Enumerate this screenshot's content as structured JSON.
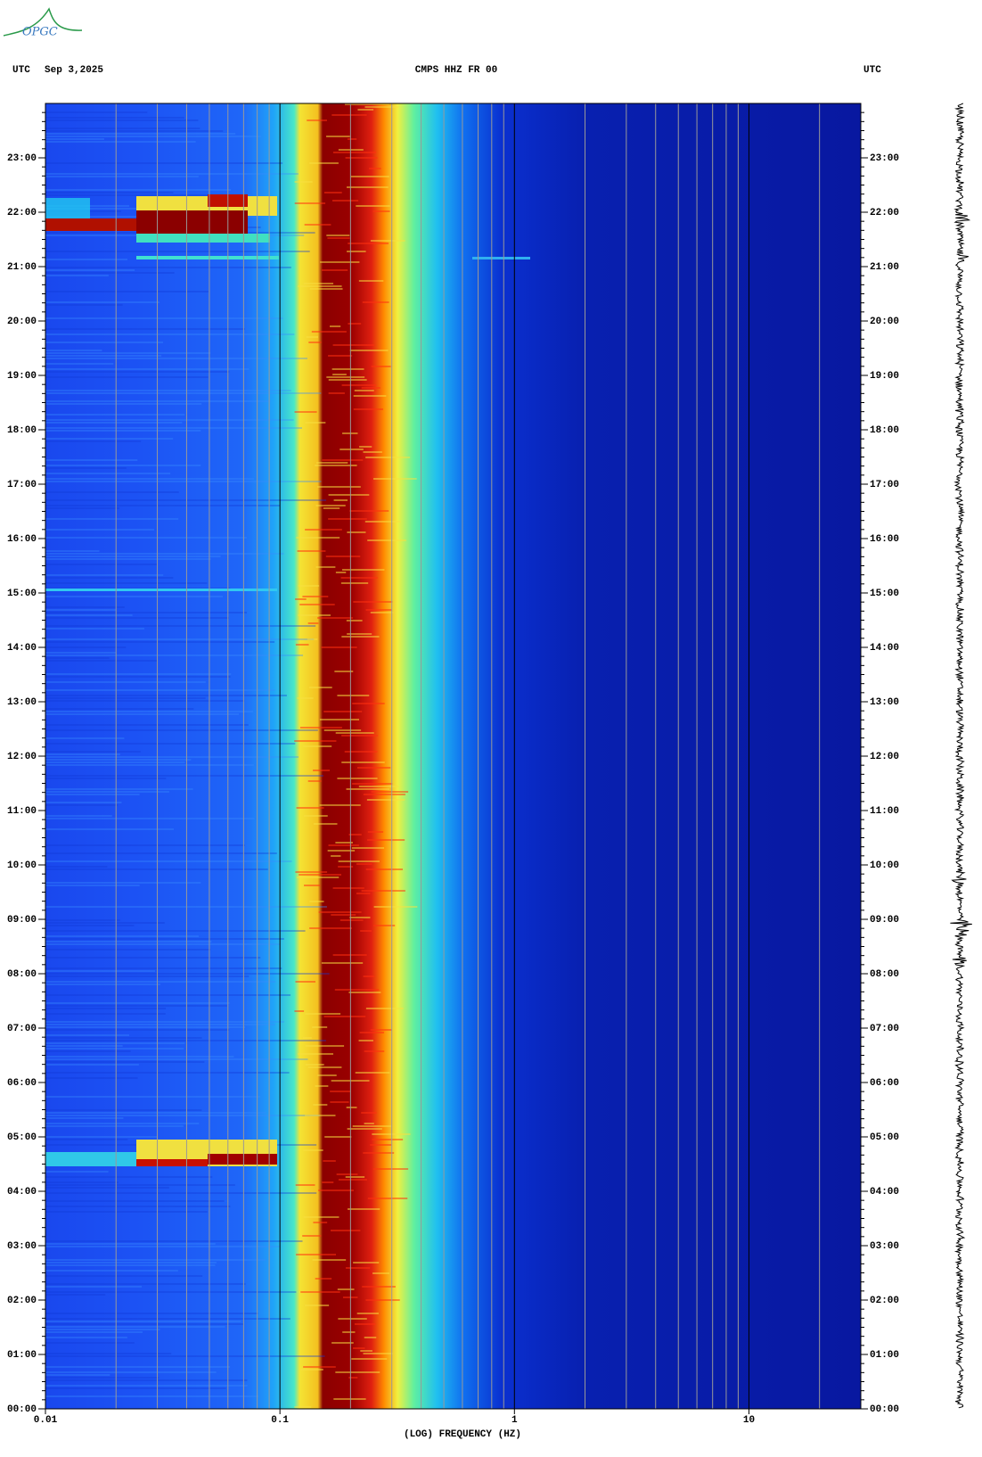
{
  "logo": "OPGC",
  "chart_data": {
    "type": "spectrogram",
    "title": "CMPS HHZ FR 00",
    "date": "Sep 3,2025",
    "timezone_left": "UTC",
    "timezone_right": "UTC",
    "xlabel": "(LOG) FREQUENCY (HZ)",
    "xscale": "log",
    "xlim": [
      0.01,
      30
    ],
    "xticks": [
      0.01,
      0.1,
      1,
      10
    ],
    "ylim": [
      0,
      24
    ],
    "yticks": [
      {
        "value": 0,
        "label": "00:00"
      },
      {
        "value": 1,
        "label": "01:00"
      },
      {
        "value": 2,
        "label": "02:00"
      },
      {
        "value": 3,
        "label": "03:00"
      },
      {
        "value": 4,
        "label": "04:00"
      },
      {
        "value": 5,
        "label": "05:00"
      },
      {
        "value": 6,
        "label": "06:00"
      },
      {
        "value": 7,
        "label": "07:00"
      },
      {
        "value": 8,
        "label": "08:00"
      },
      {
        "value": 9,
        "label": "09:00"
      },
      {
        "value": 10,
        "label": "10:00"
      },
      {
        "value": 11,
        "label": "11:00"
      },
      {
        "value": 12,
        "label": "12:00"
      },
      {
        "value": 13,
        "label": "13:00"
      },
      {
        "value": 14,
        "label": "14:00"
      },
      {
        "value": 15,
        "label": "15:00"
      },
      {
        "value": 16,
        "label": "16:00"
      },
      {
        "value": 17,
        "label": "17:00"
      },
      {
        "value": 18,
        "label": "18:00"
      },
      {
        "value": 19,
        "label": "19:00"
      },
      {
        "value": 20,
        "label": "20:00"
      },
      {
        "value": 21,
        "label": "21:00"
      },
      {
        "value": 22,
        "label": "22:00"
      },
      {
        "value": 23,
        "label": "23:00"
      }
    ],
    "grid": true
  }
}
